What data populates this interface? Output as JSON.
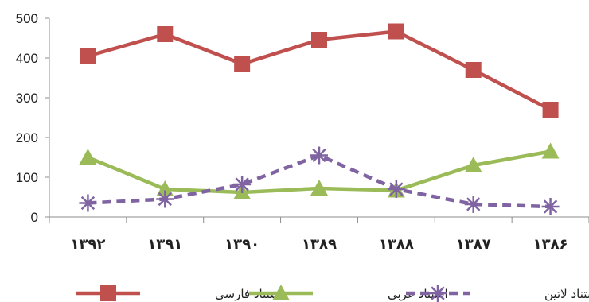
{
  "chart_data": {
    "type": "line",
    "categories": [
      "۱۳۹۲",
      "۱۳۹۱",
      "۱۳۹۰",
      "۱۳۸۹",
      "۱۳۸۸",
      "۱۳۸۷",
      "۱۳۸۶"
    ],
    "y_ticks": [
      "0",
      "100",
      "200",
      "300",
      "400",
      "500"
    ],
    "ylim": [
      0,
      500
    ],
    "grid": false,
    "legend_position": "bottom",
    "title": "",
    "xlabel": "",
    "ylabel": "",
    "series": [
      {
        "name": "استناد فارسی",
        "color": "#C0504D",
        "marker": "square",
        "dash": false,
        "values": [
          405,
          460,
          385,
          446,
          467,
          370,
          270
        ]
      },
      {
        "name": "استناد عربی",
        "color": "#9BBB59",
        "marker": "triangle",
        "dash": false,
        "values": [
          150,
          70,
          62,
          72,
          67,
          130,
          165
        ]
      },
      {
        "name": "استناد لاتین",
        "color": "#8064A2",
        "marker": "star",
        "dash": true,
        "values": [
          35,
          45,
          82,
          155,
          70,
          32,
          26
        ]
      }
    ]
  }
}
